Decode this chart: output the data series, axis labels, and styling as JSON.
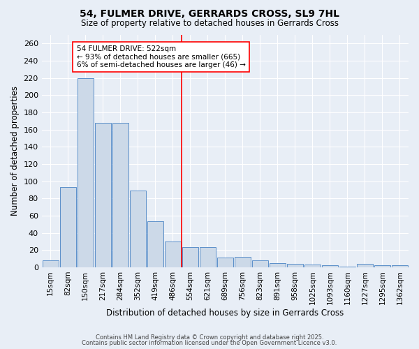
{
  "title_line1": "54, FULMER DRIVE, GERRARDS CROSS, SL9 7HL",
  "title_line2": "Size of property relative to detached houses in Gerrards Cross",
  "xlabel": "Distribution of detached houses by size in Gerrards Cross",
  "ylabel": "Number of detached properties",
  "categories": [
    "15sqm",
    "82sqm",
    "150sqm",
    "217sqm",
    "284sqm",
    "352sqm",
    "419sqm",
    "486sqm",
    "554sqm",
    "621sqm",
    "689sqm",
    "756sqm",
    "823sqm",
    "891sqm",
    "958sqm",
    "1025sqm",
    "1093sqm",
    "1160sqm",
    "1227sqm",
    "1295sqm",
    "1362sqm"
  ],
  "values": [
    8,
    93,
    220,
    168,
    168,
    89,
    53,
    30,
    23,
    23,
    11,
    12,
    8,
    5,
    4,
    3,
    2,
    1,
    4,
    2,
    2
  ],
  "bar_color": "#ccd9e8",
  "bar_edge_color": "#5b8fc9",
  "ref_line_index": 8,
  "annotation_text": "54 FULMER DRIVE: 522sqm\n← 93% of detached houses are smaller (665)\n6% of semi-detached houses are larger (46) →",
  "ylim": [
    0,
    270
  ],
  "yticks": [
    0,
    20,
    40,
    60,
    80,
    100,
    120,
    140,
    160,
    180,
    200,
    220,
    240,
    260
  ],
  "background_color": "#e8eef6",
  "grid_color": "#ffffff",
  "footer_line1": "Contains HM Land Registry data © Crown copyright and database right 2025.",
  "footer_line2": "Contains public sector information licensed under the Open Government Licence v3.0."
}
